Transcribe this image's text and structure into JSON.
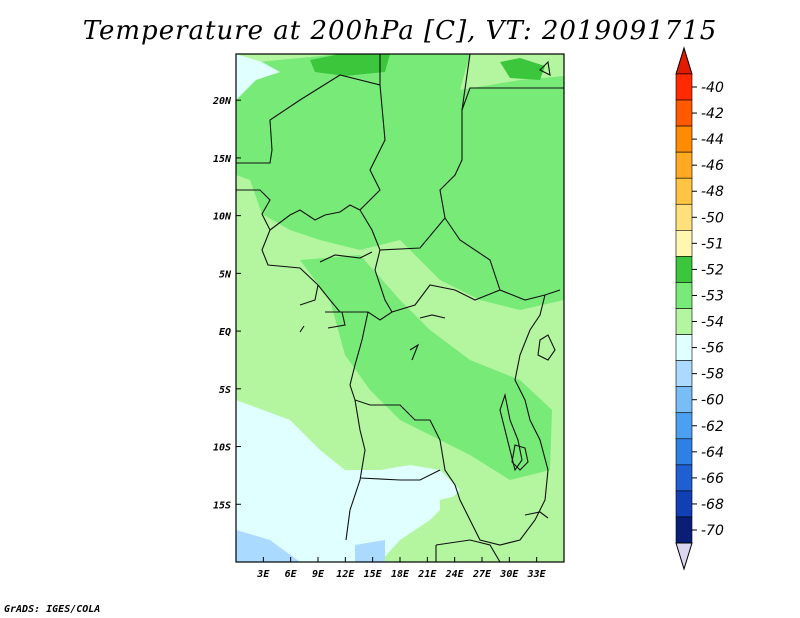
{
  "title": "Temperature at 200hPa [C], VT: 2019091715",
  "footer": "GrADS: IGES/COLA",
  "map": {
    "region": "Central Africa",
    "field": "Temperature at 200hPa",
    "units": "C",
    "lon_range": [
      0,
      36
    ],
    "lat_range": [
      -20,
      24
    ],
    "x_ticks": [
      "3E",
      "6E",
      "9E",
      "12E",
      "15E",
      "18E",
      "21E",
      "24E",
      "27E",
      "30E",
      "33E"
    ],
    "y_ticks": [
      "20N",
      "15N",
      "10N",
      "5N",
      "EQ",
      "5S",
      "10S",
      "15S"
    ]
  },
  "colorbar": {
    "labels": [
      "-40",
      "-42",
      "-44",
      "-46",
      "-48",
      "-50",
      "-51",
      "-52",
      "-53",
      "-54",
      "-56",
      "-58",
      "-60",
      "-62",
      "-64",
      "-66",
      "-68",
      "-70"
    ],
    "colors": [
      "#ff2a00",
      "#ff5a00",
      "#ff8c00",
      "#ffaa22",
      "#ffc444",
      "#ffe07a",
      "#fff7b0",
      "#3cc63c",
      "#78ea78",
      "#b4f5a0",
      "#e0ffff",
      "#aadaff",
      "#78bdf5",
      "#4ca0f0",
      "#2f80e6",
      "#1f5fd2",
      "#1040b4",
      "#0a1e78",
      "#000a50"
    ],
    "top_arrow_color": "#e21a00",
    "bottom_arrow_color": "#dcd6f0"
  }
}
